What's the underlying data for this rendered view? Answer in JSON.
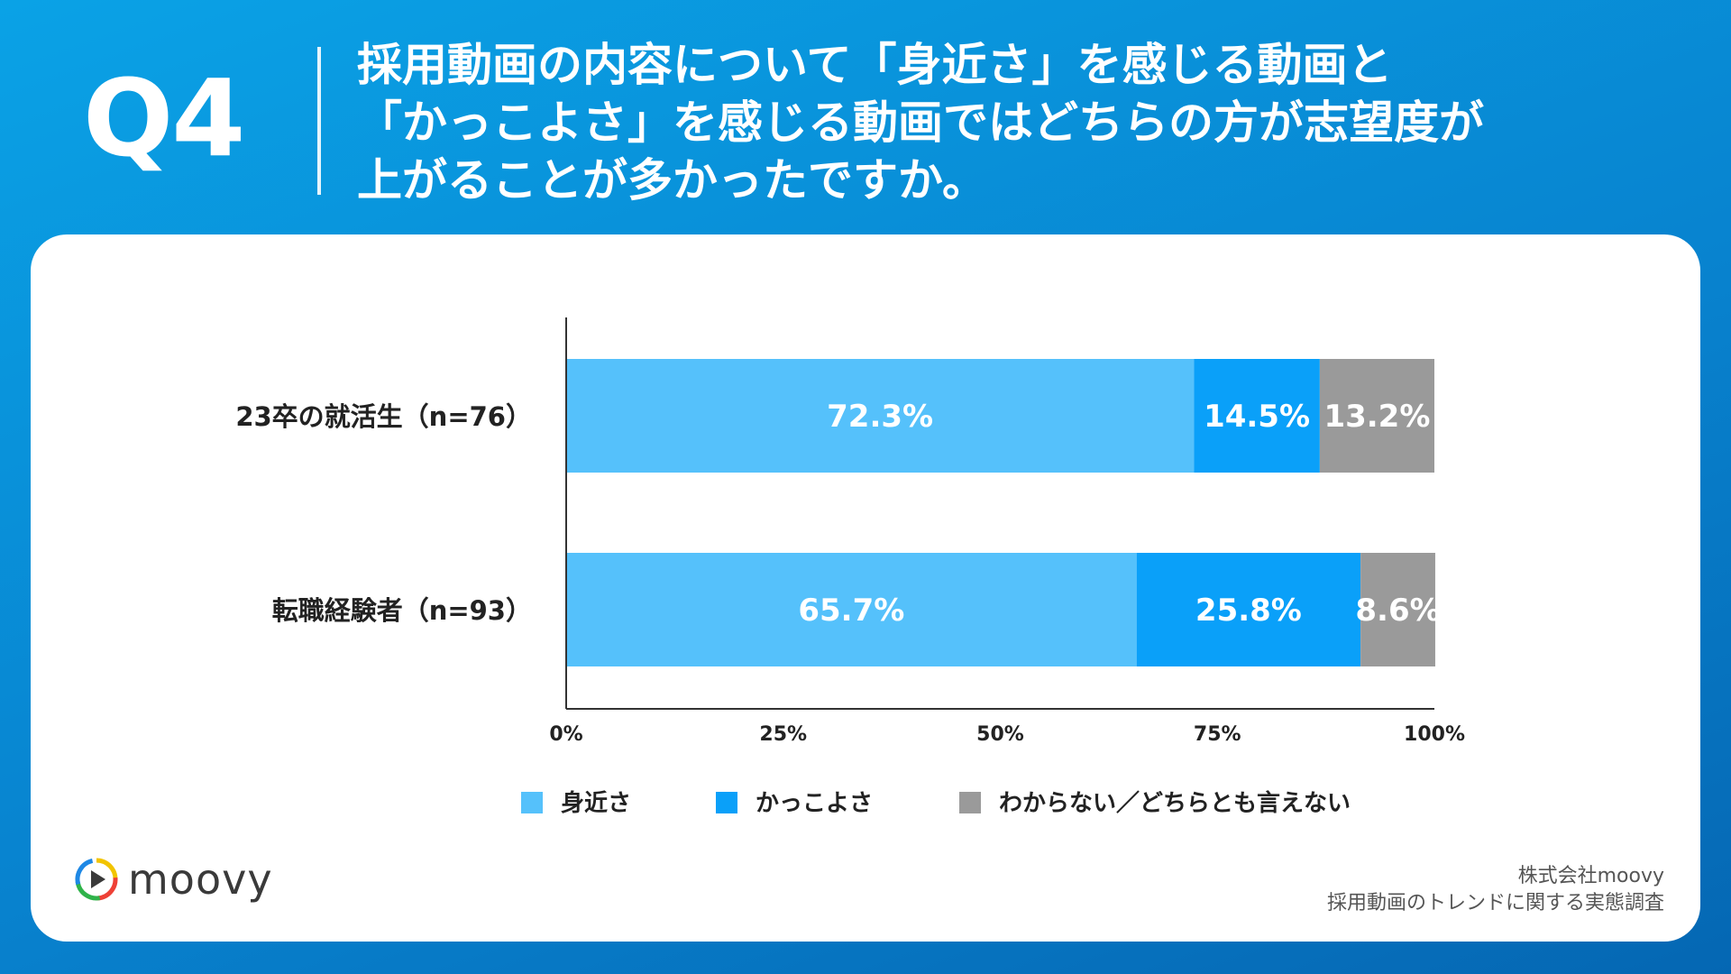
{
  "header": {
    "question_number": "Q4",
    "question_lines": [
      "採用動画の内容について「身近さ」を感じる動画と",
      "「かっこよさ」を感じる動画ではどちらの方が志望度が",
      "上がることが多かったですか。"
    ]
  },
  "chart_data": {
    "type": "bar",
    "orientation": "horizontal",
    "stacked": true,
    "categories": [
      "23卒の就活生（n=76）",
      "転職経験者（n=93）"
    ],
    "series": [
      {
        "name": "身近さ",
        "values": [
          72.3,
          65.7
        ],
        "labels": [
          "72.3%",
          "65.7%"
        ],
        "color": "#55c1fb"
      },
      {
        "name": "かっこよさ",
        "values": [
          14.5,
          25.8
        ],
        "labels": [
          "14.5%",
          "25.8%"
        ],
        "color": "#0aa0f9"
      },
      {
        "name": "わからない／どちらとも言えない",
        "values": [
          13.2,
          8.6
        ],
        "labels": [
          "13.2%",
          "8.6%"
        ],
        "color": "#9a9a9a"
      }
    ],
    "xlim": [
      0,
      100
    ],
    "x_ticks": [
      0,
      25,
      50,
      75,
      100
    ],
    "x_tick_labels": [
      "0%",
      "25%",
      "50%",
      "75%",
      "100%"
    ],
    "grid": false,
    "legend_position": "bottom"
  },
  "footer": {
    "logo_text": "moovy",
    "credit_lines": [
      "株式会社moovy",
      "採用動画のトレンドに関する実態調査"
    ]
  },
  "colors": {
    "background": "#0891d6",
    "card": "#ffffff",
    "axis": "#333333",
    "label_text": "#222222"
  }
}
